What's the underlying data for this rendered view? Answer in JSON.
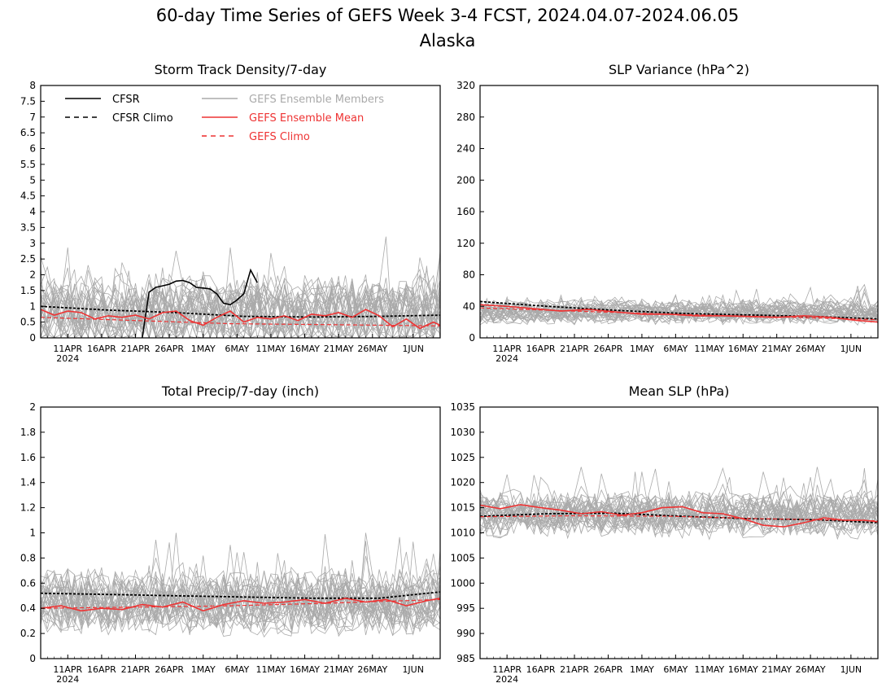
{
  "title": "60-day Time Series of GEFS Week 3-4 FCST, 2024.04.07-2024.06.05",
  "subtitle": "Alaska",
  "colors": {
    "members": "#aaaaaa",
    "ens_mean": "#ee3333",
    "gefs_climo": "#ee3333",
    "cfsr": "#000000",
    "cfsr_climo": "#000000"
  },
  "legend": {
    "cfsr": "CFSR",
    "cfsr_climo": "CFSR Climo",
    "members": "GEFS Ensemble Members",
    "ens_mean": "GEFS Ensemble Mean",
    "gefs_climo": "GEFS Climo"
  },
  "x_axis": {
    "start_date": "2024-04-07",
    "end_date": "2024-06-05",
    "ticks": [
      "2024-04-11",
      "2024-04-16",
      "2024-04-21",
      "2024-04-26",
      "2024-05-01",
      "2024-05-06",
      "2024-05-11",
      "2024-05-16",
      "2024-05-21",
      "2024-05-26",
      "2024-06-01"
    ],
    "tick_labels": [
      "11APR",
      "16APR",
      "21APR",
      "26APR",
      "1MAY",
      "6MAY",
      "11MAY",
      "16MAY",
      "21MAY",
      "26MAY",
      "1JUN"
    ],
    "year_label": "2024"
  },
  "chart_data": [
    {
      "id": "storm",
      "type": "line",
      "title": "Storm Track Density/7-day",
      "ylim": [
        0,
        8
      ],
      "yticks": [
        0,
        0.5,
        1,
        1.5,
        2,
        2.5,
        3,
        3.5,
        4,
        4.5,
        5,
        5.5,
        6,
        6.5,
        7,
        7.5,
        8
      ],
      "ytick_labels": [
        "0",
        "0.5",
        "1",
        "1.5",
        "2",
        "2.5",
        "3",
        "3.5",
        "4",
        "4.5",
        "5",
        "5.5",
        "6",
        "6.5",
        "7",
        "7.5",
        "8"
      ],
      "member_band": {
        "center": 0.8,
        "spread": 0.9,
        "max": 3.8,
        "min": 0
      },
      "series": [
        {
          "role": "cfsr",
          "x": [
            "2024-04-22",
            "2024-04-23",
            "2024-04-24",
            "2024-04-25",
            "2024-04-26",
            "2024-04-27",
            "2024-04-28",
            "2024-04-29",
            "2024-04-30",
            "2024-05-01",
            "2024-05-02",
            "2024-05-03",
            "2024-05-04",
            "2024-05-05",
            "2024-05-06",
            "2024-05-07",
            "2024-05-08",
            "2024-05-09"
          ],
          "values": [
            0,
            1.45,
            1.6,
            1.65,
            1.7,
            1.8,
            1.82,
            1.75,
            1.6,
            1.58,
            1.55,
            1.4,
            1.1,
            1.05,
            1.2,
            1.4,
            2.15,
            1.75
          ]
        },
        {
          "role": "cfsr_climo",
          "x": [
            "2024-04-07",
            "2024-04-17",
            "2024-04-27",
            "2024-05-07",
            "2024-05-17",
            "2024-05-27",
            "2024-06-05"
          ],
          "values": [
            1.0,
            0.88,
            0.8,
            0.68,
            0.66,
            0.68,
            0.72
          ]
        },
        {
          "role": "ens_mean",
          "x": [
            "2024-04-07",
            "2024-04-09",
            "2024-04-11",
            "2024-04-13",
            "2024-04-15",
            "2024-04-17",
            "2024-04-19",
            "2024-04-21",
            "2024-04-23",
            "2024-04-25",
            "2024-04-27",
            "2024-04-29",
            "2024-05-01",
            "2024-05-03",
            "2024-05-05",
            "2024-05-07",
            "2024-05-09",
            "2024-05-11",
            "2024-05-13",
            "2024-05-15",
            "2024-05-17",
            "2024-05-19",
            "2024-05-21",
            "2024-05-23",
            "2024-05-25",
            "2024-05-27",
            "2024-05-29",
            "2024-05-31",
            "2024-06-02",
            "2024-06-04",
            "2024-06-05"
          ],
          "values": [
            0.9,
            0.72,
            0.85,
            0.8,
            0.6,
            0.7,
            0.65,
            0.72,
            0.6,
            0.8,
            0.85,
            0.55,
            0.4,
            0.65,
            0.85,
            0.5,
            0.65,
            0.6,
            0.7,
            0.55,
            0.75,
            0.7,
            0.8,
            0.65,
            0.9,
            0.7,
            0.35,
            0.6,
            0.3,
            0.5,
            0.4
          ]
        },
        {
          "role": "gefs_climo",
          "x": [
            "2024-04-07",
            "2024-04-21",
            "2024-05-05",
            "2024-05-19",
            "2024-06-05"
          ],
          "values": [
            0.65,
            0.55,
            0.45,
            0.42,
            0.38
          ]
        }
      ]
    },
    {
      "id": "slpvar",
      "type": "line",
      "title": "SLP Variance (hPa^2)",
      "ylim": [
        0,
        320
      ],
      "yticks": [
        0,
        40,
        80,
        120,
        160,
        200,
        240,
        280,
        320
      ],
      "ytick_labels": [
        "0",
        "40",
        "80",
        "120",
        "160",
        "200",
        "240",
        "280",
        "320"
      ],
      "member_band": {
        "center": 33,
        "spread": 12,
        "max": 92,
        "min": 10
      },
      "series": [
        {
          "role": "cfsr_climo",
          "x": [
            "2024-04-07",
            "2024-04-17",
            "2024-04-27",
            "2024-05-07",
            "2024-05-17",
            "2024-05-27",
            "2024-06-05"
          ],
          "values": [
            46,
            40,
            35,
            31,
            29,
            27,
            24
          ]
        },
        {
          "role": "ens_mean",
          "x": [
            "2024-04-07",
            "2024-04-11",
            "2024-04-15",
            "2024-04-19",
            "2024-04-23",
            "2024-04-27",
            "2024-05-01",
            "2024-05-05",
            "2024-05-09",
            "2024-05-13",
            "2024-05-17",
            "2024-05-21",
            "2024-05-25",
            "2024-05-29",
            "2024-06-02",
            "2024-06-05"
          ],
          "values": [
            42,
            40,
            37,
            34,
            36,
            33,
            30,
            30,
            28,
            28,
            27,
            26,
            28,
            26,
            22,
            20
          ]
        },
        {
          "role": "gefs_climo",
          "x": [
            "2024-04-07",
            "2024-04-21",
            "2024-05-05",
            "2024-05-19",
            "2024-06-05"
          ],
          "values": [
            38,
            34,
            30,
            27,
            23
          ]
        }
      ]
    },
    {
      "id": "precip",
      "type": "line",
      "title": "Total Precip/7-day (inch)",
      "ylim": [
        0,
        2
      ],
      "yticks": [
        0,
        0.2,
        0.4,
        0.6,
        0.8,
        1,
        1.2,
        1.4,
        1.6,
        1.8,
        2
      ],
      "ytick_labels": [
        "0",
        "0.2",
        "0.4",
        "0.6",
        "0.8",
        "1",
        "1.2",
        "1.4",
        "1.6",
        "1.8",
        "2"
      ],
      "member_band": {
        "center": 0.45,
        "spread": 0.2,
        "max": 1.0,
        "min": 0.05
      },
      "series": [
        {
          "role": "cfsr_climo",
          "x": [
            "2024-04-07",
            "2024-04-17",
            "2024-04-27",
            "2024-05-07",
            "2024-05-17",
            "2024-05-27",
            "2024-06-05"
          ],
          "values": [
            0.52,
            0.51,
            0.5,
            0.49,
            0.48,
            0.48,
            0.53
          ]
        },
        {
          "role": "ens_mean",
          "x": [
            "2024-04-07",
            "2024-04-10",
            "2024-04-13",
            "2024-04-16",
            "2024-04-19",
            "2024-04-22",
            "2024-04-25",
            "2024-04-28",
            "2024-05-01",
            "2024-05-04",
            "2024-05-07",
            "2024-05-10",
            "2024-05-13",
            "2024-05-16",
            "2024-05-19",
            "2024-05-22",
            "2024-05-25",
            "2024-05-28",
            "2024-05-31",
            "2024-06-03",
            "2024-06-05"
          ],
          "values": [
            0.4,
            0.42,
            0.38,
            0.4,
            0.39,
            0.43,
            0.41,
            0.45,
            0.38,
            0.43,
            0.46,
            0.44,
            0.45,
            0.47,
            0.44,
            0.48,
            0.45,
            0.47,
            0.42,
            0.46,
            0.48
          ]
        },
        {
          "role": "gefs_climo",
          "x": [
            "2024-04-07",
            "2024-04-21",
            "2024-05-05",
            "2024-05-19",
            "2024-06-05"
          ],
          "values": [
            0.4,
            0.41,
            0.42,
            0.44,
            0.47
          ]
        }
      ]
    },
    {
      "id": "meanslp",
      "type": "line",
      "title": "Mean SLP (hPa)",
      "ylim": [
        985,
        1035
      ],
      "yticks": [
        985,
        990,
        995,
        1000,
        1005,
        1010,
        1015,
        1020,
        1025,
        1030,
        1035
      ],
      "ytick_labels": [
        "985",
        "990",
        "995",
        "1000",
        "1005",
        "1010",
        "1015",
        "1020",
        "1025",
        "1030",
        "1035"
      ],
      "member_band": {
        "center": 1013.5,
        "spread": 3.5,
        "max": 1025,
        "min": 1004
      },
      "series": [
        {
          "role": "cfsr_climo",
          "x": [
            "2024-04-07",
            "2024-04-17",
            "2024-04-27",
            "2024-05-07",
            "2024-05-17",
            "2024-05-27",
            "2024-06-05"
          ],
          "values": [
            1013.3,
            1013.8,
            1013.9,
            1013.3,
            1012.8,
            1012.6,
            1012.0
          ]
        },
        {
          "role": "ens_mean",
          "x": [
            "2024-04-07",
            "2024-04-10",
            "2024-04-13",
            "2024-04-16",
            "2024-04-19",
            "2024-04-22",
            "2024-04-25",
            "2024-04-28",
            "2024-05-01",
            "2024-05-04",
            "2024-05-07",
            "2024-05-10",
            "2024-05-13",
            "2024-05-16",
            "2024-05-19",
            "2024-05-22",
            "2024-05-25",
            "2024-05-28",
            "2024-05-31",
            "2024-06-03",
            "2024-06-05"
          ],
          "values": [
            1015.5,
            1014.8,
            1015.6,
            1015.0,
            1014.5,
            1013.8,
            1014.2,
            1013.5,
            1014.0,
            1015.0,
            1015.2,
            1014.0,
            1013.8,
            1012.8,
            1011.5,
            1011.2,
            1012.0,
            1013.0,
            1012.5,
            1012.5,
            1012.2
          ]
        },
        {
          "role": "gefs_climo",
          "x": [
            "2024-04-07",
            "2024-04-21",
            "2024-05-05",
            "2024-05-19",
            "2024-06-05"
          ],
          "values": [
            1013.2,
            1013.4,
            1013.3,
            1012.8,
            1012.4
          ]
        }
      ]
    }
  ]
}
